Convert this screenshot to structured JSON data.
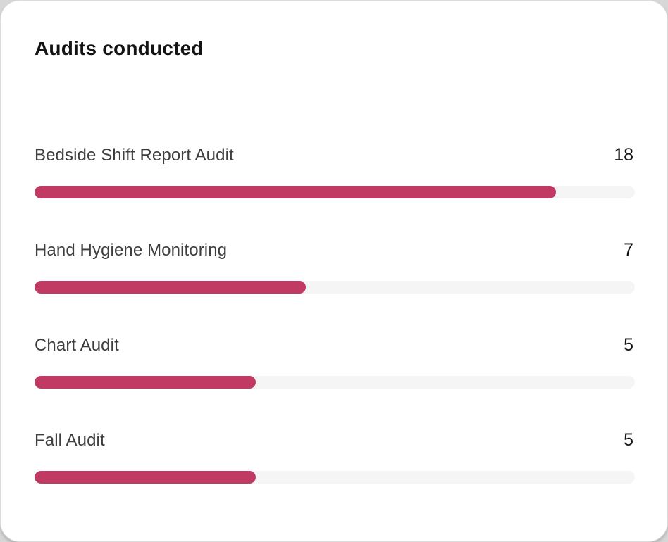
{
  "card": {
    "title": "Audits conducted"
  },
  "rows": [
    {
      "label": "Bedside Shift Report Audit",
      "value": "18",
      "percent": 86.9
    },
    {
      "label": "Hand Hygiene Monitoring",
      "value": "7",
      "percent": 45.2
    },
    {
      "label": "Chart Audit",
      "value": "5",
      "percent": 36.9
    },
    {
      "label": "Fall Audit",
      "value": "5",
      "percent": 36.9
    }
  ],
  "colors": {
    "bar_fill": "#c13a64",
    "bar_track": "#f5f5f5",
    "title_text": "#141414",
    "label_text": "#3e3e3e",
    "card_background": "#ffffff"
  },
  "chart_data": {
    "type": "bar",
    "orientation": "horizontal",
    "title": "Audits conducted",
    "categories": [
      "Bedside Shift Report Audit",
      "Hand Hygiene Monitoring",
      "Chart Audit",
      "Fall Audit"
    ],
    "values": [
      18,
      7,
      5,
      5
    ],
    "bar_fill_percent": [
      86.9,
      45.2,
      36.9,
      36.9
    ],
    "xlabel": "",
    "ylabel": "",
    "grid": false,
    "legend": false,
    "data_labels_position": "right-aligned"
  }
}
